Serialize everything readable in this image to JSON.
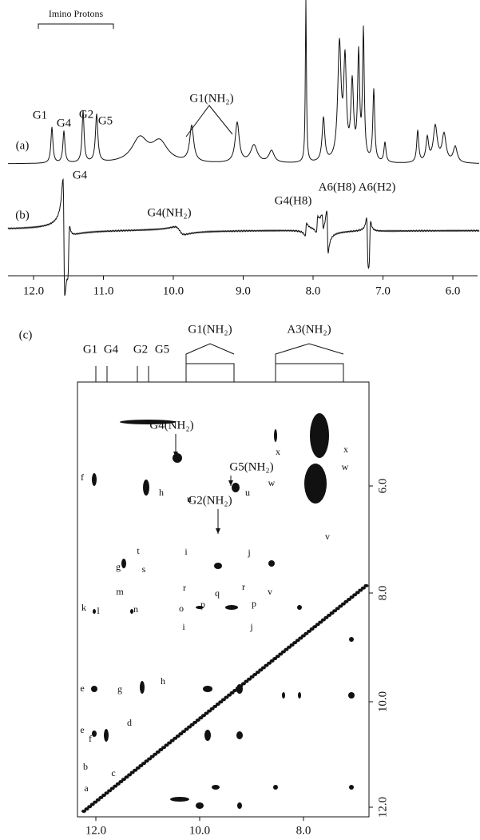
{
  "panels": {
    "a": {
      "label": "(a)",
      "bracket_label": "Imino Protons",
      "peak_labels": [
        "G1",
        "G4",
        "G2",
        "G5",
        "G1(NH₂)"
      ]
    },
    "b": {
      "label": "(b)",
      "peak_labels": [
        "G4",
        "G4(NH₂)",
        "G4(H8)",
        "A6(H8)",
        "A6(H2)"
      ]
    },
    "top_axis": {
      "ticks": [
        "12.0",
        "11.0",
        "10.0",
        "9.0",
        "8.0",
        "7.0",
        "6.0"
      ]
    },
    "c": {
      "label": "(c)",
      "top_labels": [
        "G1",
        "G4",
        "G2",
        "G5",
        "G1(NH₂)",
        "A3(NH₂)"
      ],
      "arrow_labels": [
        "G4(NH₂)",
        "G5(NH₂)",
        "G2(NH₂)"
      ],
      "cross_peak_labels": [
        "f",
        "h",
        "u",
        "u",
        "w",
        "w",
        "x",
        "x",
        "g",
        "t",
        "s",
        "i",
        "j",
        "v",
        "r",
        "r",
        "q",
        "m",
        "k",
        "l",
        "n",
        "o",
        "p",
        "p",
        "v",
        "i",
        "j",
        "e",
        "g",
        "h",
        "e",
        "f",
        "d",
        "b",
        "c",
        "a"
      ],
      "x_ticks": [
        "12.0",
        "10.0",
        "8.0"
      ],
      "y_ticks": [
        "6.0",
        "8.0",
        "10.0",
        "12.0"
      ]
    }
  }
}
